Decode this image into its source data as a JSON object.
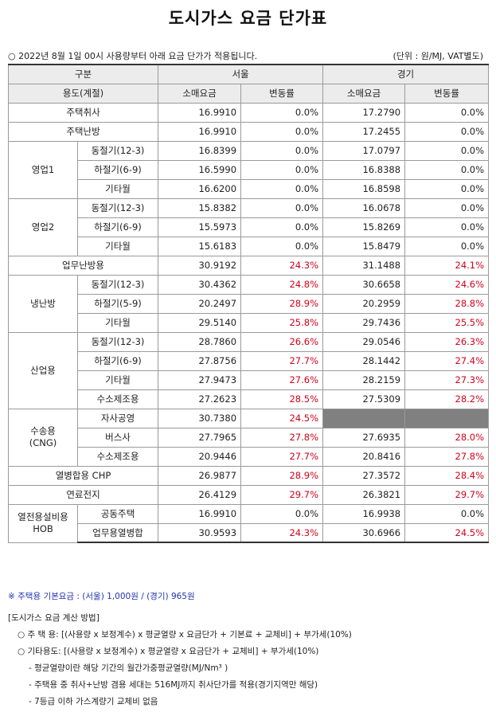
{
  "title": "도시가스 요금 단가표",
  "notice": "○ 2022년 8월 1일 00시 사용량부터 아래 요금 단가가 적용됩니다.",
  "unit_note": "(단위 : 원/MJ, VAT별도)",
  "header": {
    "division": "구분",
    "seoul": "서울",
    "gyeonggi": "경기",
    "usage": "용도(계절)",
    "retail": "소매요금",
    "change": "변동률"
  },
  "rows": [
    {
      "group": "주택취사",
      "seoul_price": "16.9910",
      "seoul_change": "0.0%",
      "gg_price": "17.2790",
      "gg_change": "0.0%"
    },
    {
      "group": "주택난방",
      "seoul_price": "16.9910",
      "seoul_change": "0.0%",
      "gg_price": "17.2455",
      "gg_change": "0.0%"
    },
    {
      "group": "영업1",
      "sub": "동절기(12-3)",
      "seoul_price": "16.8399",
      "seoul_change": "0.0%",
      "gg_price": "17.0797",
      "gg_change": "0.0%"
    },
    {
      "sub": "하절기(6-9)",
      "seoul_price": "16.5990",
      "seoul_change": "0.0%",
      "gg_price": "16.8388",
      "gg_change": "0.0%"
    },
    {
      "sub": "기타월",
      "seoul_price": "16.6200",
      "seoul_change": "0.0%",
      "gg_price": "16.8598",
      "gg_change": "0.0%"
    },
    {
      "group": "영업2",
      "sub": "동절기(12-3)",
      "seoul_price": "15.8382",
      "seoul_change": "0.0%",
      "gg_price": "16.0678",
      "gg_change": "0.0%"
    },
    {
      "sub": "하절기(6-9)",
      "seoul_price": "15.5973",
      "seoul_change": "0.0%",
      "gg_price": "15.8269",
      "gg_change": "0.0%"
    },
    {
      "sub": "기타월",
      "seoul_price": "15.6183",
      "seoul_change": "0.0%",
      "gg_price": "15.8479",
      "gg_change": "0.0%"
    },
    {
      "group": "업무난방용",
      "seoul_price": "30.9192",
      "seoul_change": "24.3%",
      "gg_price": "31.1488",
      "gg_change": "24.1%"
    },
    {
      "group": "냉난방",
      "sub": "동절기(12-3)",
      "seoul_price": "30.4362",
      "seoul_change": "24.8%",
      "gg_price": "30.6658",
      "gg_change": "24.6%"
    },
    {
      "sub": "하절기(5-9)",
      "seoul_price": "20.2497",
      "seoul_change": "28.9%",
      "gg_price": "20.2959",
      "gg_change": "28.8%"
    },
    {
      "sub": "기타월",
      "seoul_price": "29.5140",
      "seoul_change": "25.8%",
      "gg_price": "29.7436",
      "gg_change": "25.5%"
    },
    {
      "group": "산업용",
      "sub": "동절기(12-3)",
      "seoul_price": "28.7860",
      "seoul_change": "26.6%",
      "gg_price": "29.0546",
      "gg_change": "26.3%"
    },
    {
      "sub": "하절기(6-9)",
      "seoul_price": "27.8756",
      "seoul_change": "27.7%",
      "gg_price": "28.1442",
      "gg_change": "27.4%"
    },
    {
      "sub": "기타월",
      "seoul_price": "27.9473",
      "seoul_change": "27.6%",
      "gg_price": "28.2159",
      "gg_change": "27.3%"
    },
    {
      "sub": "수소제조용",
      "seoul_price": "27.2623",
      "seoul_change": "28.5%",
      "gg_price": "27.5309",
      "gg_change": "28.2%"
    },
    {
      "group": "수송용",
      "group2": "(CNG)",
      "sub": "자사공영",
      "seoul_price": "30.7380",
      "seoul_change": "24.5%",
      "gg_price": "",
      "gg_change": ""
    },
    {
      "sub": "버스사",
      "seoul_price": "27.7965",
      "seoul_change": "27.8%",
      "gg_price": "27.6935",
      "gg_change": "28.0%"
    },
    {
      "sub": "수소제조용",
      "seoul_price": "20.9446",
      "seoul_change": "27.7%",
      "gg_price": "20.8416",
      "gg_change": "27.8%"
    },
    {
      "group": "열병합용 CHP",
      "seoul_price": "26.9877",
      "seoul_change": "28.9%",
      "gg_price": "27.3572",
      "gg_change": "28.4%"
    },
    {
      "group": "연료전지",
      "seoul_price": "26.4129",
      "seoul_change": "29.7%",
      "gg_price": "26.3821",
      "gg_change": "29.7%"
    },
    {
      "group": "열전용설비용",
      "group2": "HOB",
      "sub": "공동주택",
      "seoul_price": "16.9910",
      "seoul_change": "0.0%",
      "gg_price": "16.9938",
      "gg_change": "0.0%"
    },
    {
      "sub": "업무용열병합",
      "seoul_price": "30.9593",
      "seoul_change": "24.3%",
      "gg_price": "30.6966",
      "gg_change": "24.5%"
    }
  ],
  "footnote": "※ 주택용 기본요금 : (서울) 1,000원 / (경기) 965원",
  "calc": {
    "title": "[도시가스 요금 계산 방법]",
    "line1": "○ 주 택 용: [(사용량 x 보정계수) x 평균열량 x 요금단가 + 기본료 + 교체비] + 부가세(10%)",
    "line2": "○ 기타용도: [(사용량 x 보정계수) x 평균열량 x 요금단가 + 교체비] + 부가세(10%)",
    "sub1": "- 평균열량이란 해당 기간의 월간가중평균열량(MJ/Nm³ )",
    "sub2": "- 주택용 중 취사+난방 겸용 세대는 516MJ까지 취사단가를 적용(경기지역만 해당)",
    "sub3": "- 7등급 이하 가스계량기 교체비 없음"
  },
  "colors": {
    "increase": "#d0021b",
    "header_bg": "#ececec",
    "na_cell": "#808080"
  }
}
